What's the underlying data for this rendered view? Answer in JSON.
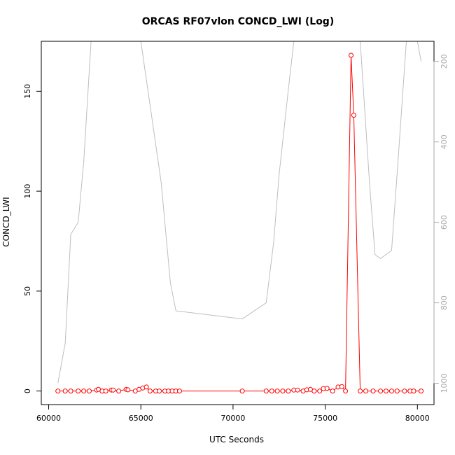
{
  "chart_data": {
    "type": "line",
    "title": "ORCAS RF07vlon CONCD_LWI (Log)",
    "xlabel": "UTC Seconds",
    "ylabel": "CONCD_LWI",
    "xlim": [
      59600,
      80900
    ],
    "ylim": [
      -6.8,
      175
    ],
    "y2lim": [
      1053,
      150
    ],
    "x_ticks": [
      60000,
      65000,
      70000,
      75000,
      80000
    ],
    "y_ticks": [
      0,
      50,
      100,
      150
    ],
    "y2_ticks": [
      200,
      400,
      600,
      800,
      1000
    ],
    "colors": {
      "series": "#ff0000",
      "secondary": "#bebebe",
      "axis": "#000000",
      "secondary_ticks": "#aaaaaa"
    },
    "grid": false,
    "legend": "none",
    "series": [
      {
        "axis": "left",
        "style": "line+circles",
        "x": [
          60500,
          60900,
          61200,
          61600,
          61900,
          62200,
          62600,
          62700,
          62900,
          63100,
          63400,
          63500,
          63800,
          64200,
          64300,
          64700,
          64900,
          65100,
          65300,
          65500,
          65800,
          66000,
          66300,
          66500,
          66700,
          66900,
          67100,
          70500,
          71800,
          72100,
          72400,
          72700,
          73000,
          73300,
          73500,
          73800,
          74000,
          74200,
          74400,
          74700,
          74900,
          75100,
          75400,
          75700,
          75900,
          76100,
          76400,
          76550,
          76900,
          77200,
          77600,
          78000,
          78300,
          78600,
          78900,
          79300,
          79600,
          79800,
          80200
        ],
        "y": [
          0,
          0,
          0,
          0,
          0,
          0,
          0.5,
          0.8,
          0,
          0,
          0.5,
          0.5,
          0,
          0.8,
          0.6,
          0,
          0.8,
          1.5,
          2,
          0,
          0,
          0,
          0,
          0,
          0,
          0,
          0,
          0,
          0,
          0,
          0,
          0,
          0,
          0.5,
          0.5,
          0,
          0.6,
          0.8,
          0,
          0,
          1.2,
          1.3,
          0,
          2,
          2.2,
          0,
          168,
          138,
          0,
          0,
          0,
          0,
          0,
          0,
          0,
          0,
          0,
          0,
          0
        ]
      },
      {
        "axis": "right",
        "style": "line",
        "x": [
          60500,
          60900,
          61200,
          61600,
          61900,
          62300,
          64500,
          65000,
          66100,
          66300,
          66600,
          66900,
          70500,
          71800,
          72200,
          72500,
          73000,
          73300,
          76900,
          77400,
          77700,
          78000,
          78600,
          78900,
          79400,
          80000,
          80200
        ],
        "y": [
          1000,
          900,
          630,
          600,
          450,
          150,
          150,
          150,
          500,
          600,
          750,
          820,
          840,
          800,
          650,
          480,
          270,
          150,
          150,
          500,
          680,
          690,
          670,
          480,
          150,
          150,
          200
        ]
      }
    ]
  }
}
